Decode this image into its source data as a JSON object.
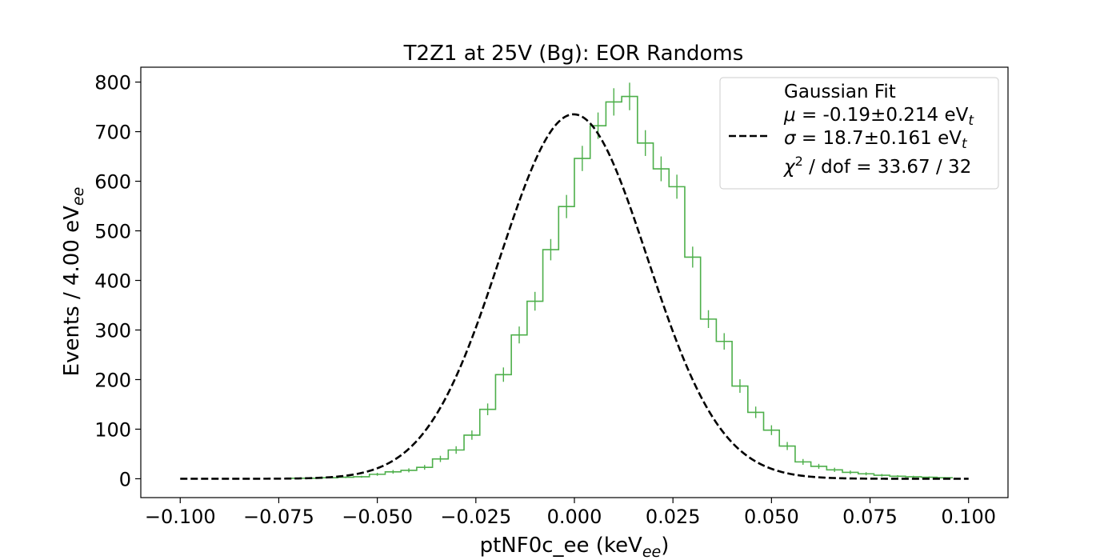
{
  "chart_data": {
    "type": "histogram",
    "title": "T2Z1 at 25V (Bg): EOR Randoms",
    "xlabel": {
      "main": "ptNF0c_ee (keV",
      "sub": "ee",
      "tail": ")"
    },
    "ylabel": {
      "main": "Events / 4.00 eV",
      "sub": "ee"
    },
    "xlim": [
      -0.11,
      0.11
    ],
    "ylim": [
      -38,
      830
    ],
    "xticks": [
      -0.1,
      -0.075,
      -0.05,
      -0.025,
      0.0,
      0.025,
      0.05,
      0.075,
      0.1
    ],
    "xtick_labels": [
      "−0.100",
      "−0.075",
      "−0.050",
      "−0.025",
      "0.000",
      "0.025",
      "0.050",
      "0.075",
      "0.100"
    ],
    "yticks": [
      0,
      100,
      200,
      300,
      400,
      500,
      600,
      700,
      800
    ],
    "ytick_labels": [
      "0",
      "100",
      "200",
      "300",
      "400",
      "500",
      "600",
      "700",
      "800"
    ],
    "bin_width": 0.004,
    "bin_edges_start": -0.072,
    "counts": [
      1,
      1,
      2,
      3,
      4,
      9,
      14,
      17,
      23,
      40,
      58,
      88,
      140,
      210,
      290,
      358,
      462,
      549,
      646,
      712,
      760,
      771,
      677,
      625,
      589,
      447,
      322,
      277,
      187,
      134,
      98,
      66,
      34,
      25,
      18,
      13,
      10,
      7,
      5,
      4,
      3,
      2
    ],
    "hist_color": "#4daf4a",
    "fit": {
      "label": "Gaussian Fit",
      "mu": -0.00019,
      "sigma": 0.0187,
      "amplitude": 735,
      "x_range": [
        -0.1,
        0.1
      ],
      "color": "#000000",
      "style": "dashed"
    },
    "legend": {
      "position": "top-right",
      "lines": [
        {
          "text": "Gaussian Fit"
        },
        {
          "sym": "μ",
          "text": "-0.19±0.214 eV",
          "sub": "t"
        },
        {
          "sym": "σ",
          "text": "18.7±0.161 eV",
          "sub": "t"
        },
        {
          "text": "χ",
          "sup": "2",
          "rest": " / dof = 33.67 / 32"
        }
      ]
    },
    "grid": false
  }
}
